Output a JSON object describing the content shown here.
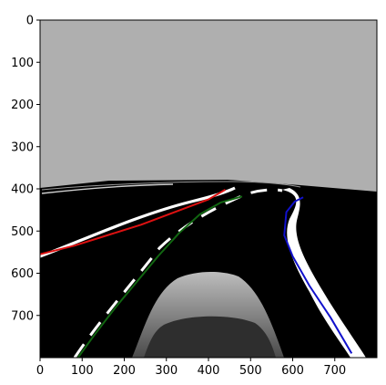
{
  "chart_data": {
    "type": "image_plot",
    "title": "",
    "xlabel": "",
    "ylabel": "",
    "xlim": [
      0,
      800
    ],
    "ylim": [
      800,
      0
    ],
    "xticks": [
      0,
      100,
      200,
      300,
      400,
      500,
      600,
      700
    ],
    "yticks": [
      0,
      100,
      200,
      300,
      400,
      500,
      600,
      700
    ],
    "grid": false,
    "image_content": "driving simulator camera view: grey sky, black road with white lane markings, grey car hood at bottom center",
    "series": [
      {
        "color": "#dd1111",
        "style": "solid",
        "x": [
          0,
          80,
          160,
          240,
          320,
          400,
          440
        ],
        "y": [
          555,
          535,
          510,
          485,
          455,
          425,
          402
        ]
      },
      {
        "color": "#116611",
        "style": "solid",
        "x": [
          90,
          130,
          180,
          230,
          280,
          330,
          380,
          430,
          480
        ],
        "y": [
          800,
          745,
          680,
          620,
          560,
          505,
          460,
          432,
          418
        ]
      },
      {
        "color": "#1111cc",
        "style": "solid",
        "x": [
          625,
          605,
          585,
          580,
          600,
          640,
          690,
          740
        ],
        "y": [
          420,
          430,
          455,
          510,
          560,
          630,
          705,
          790
        ]
      }
    ]
  }
}
